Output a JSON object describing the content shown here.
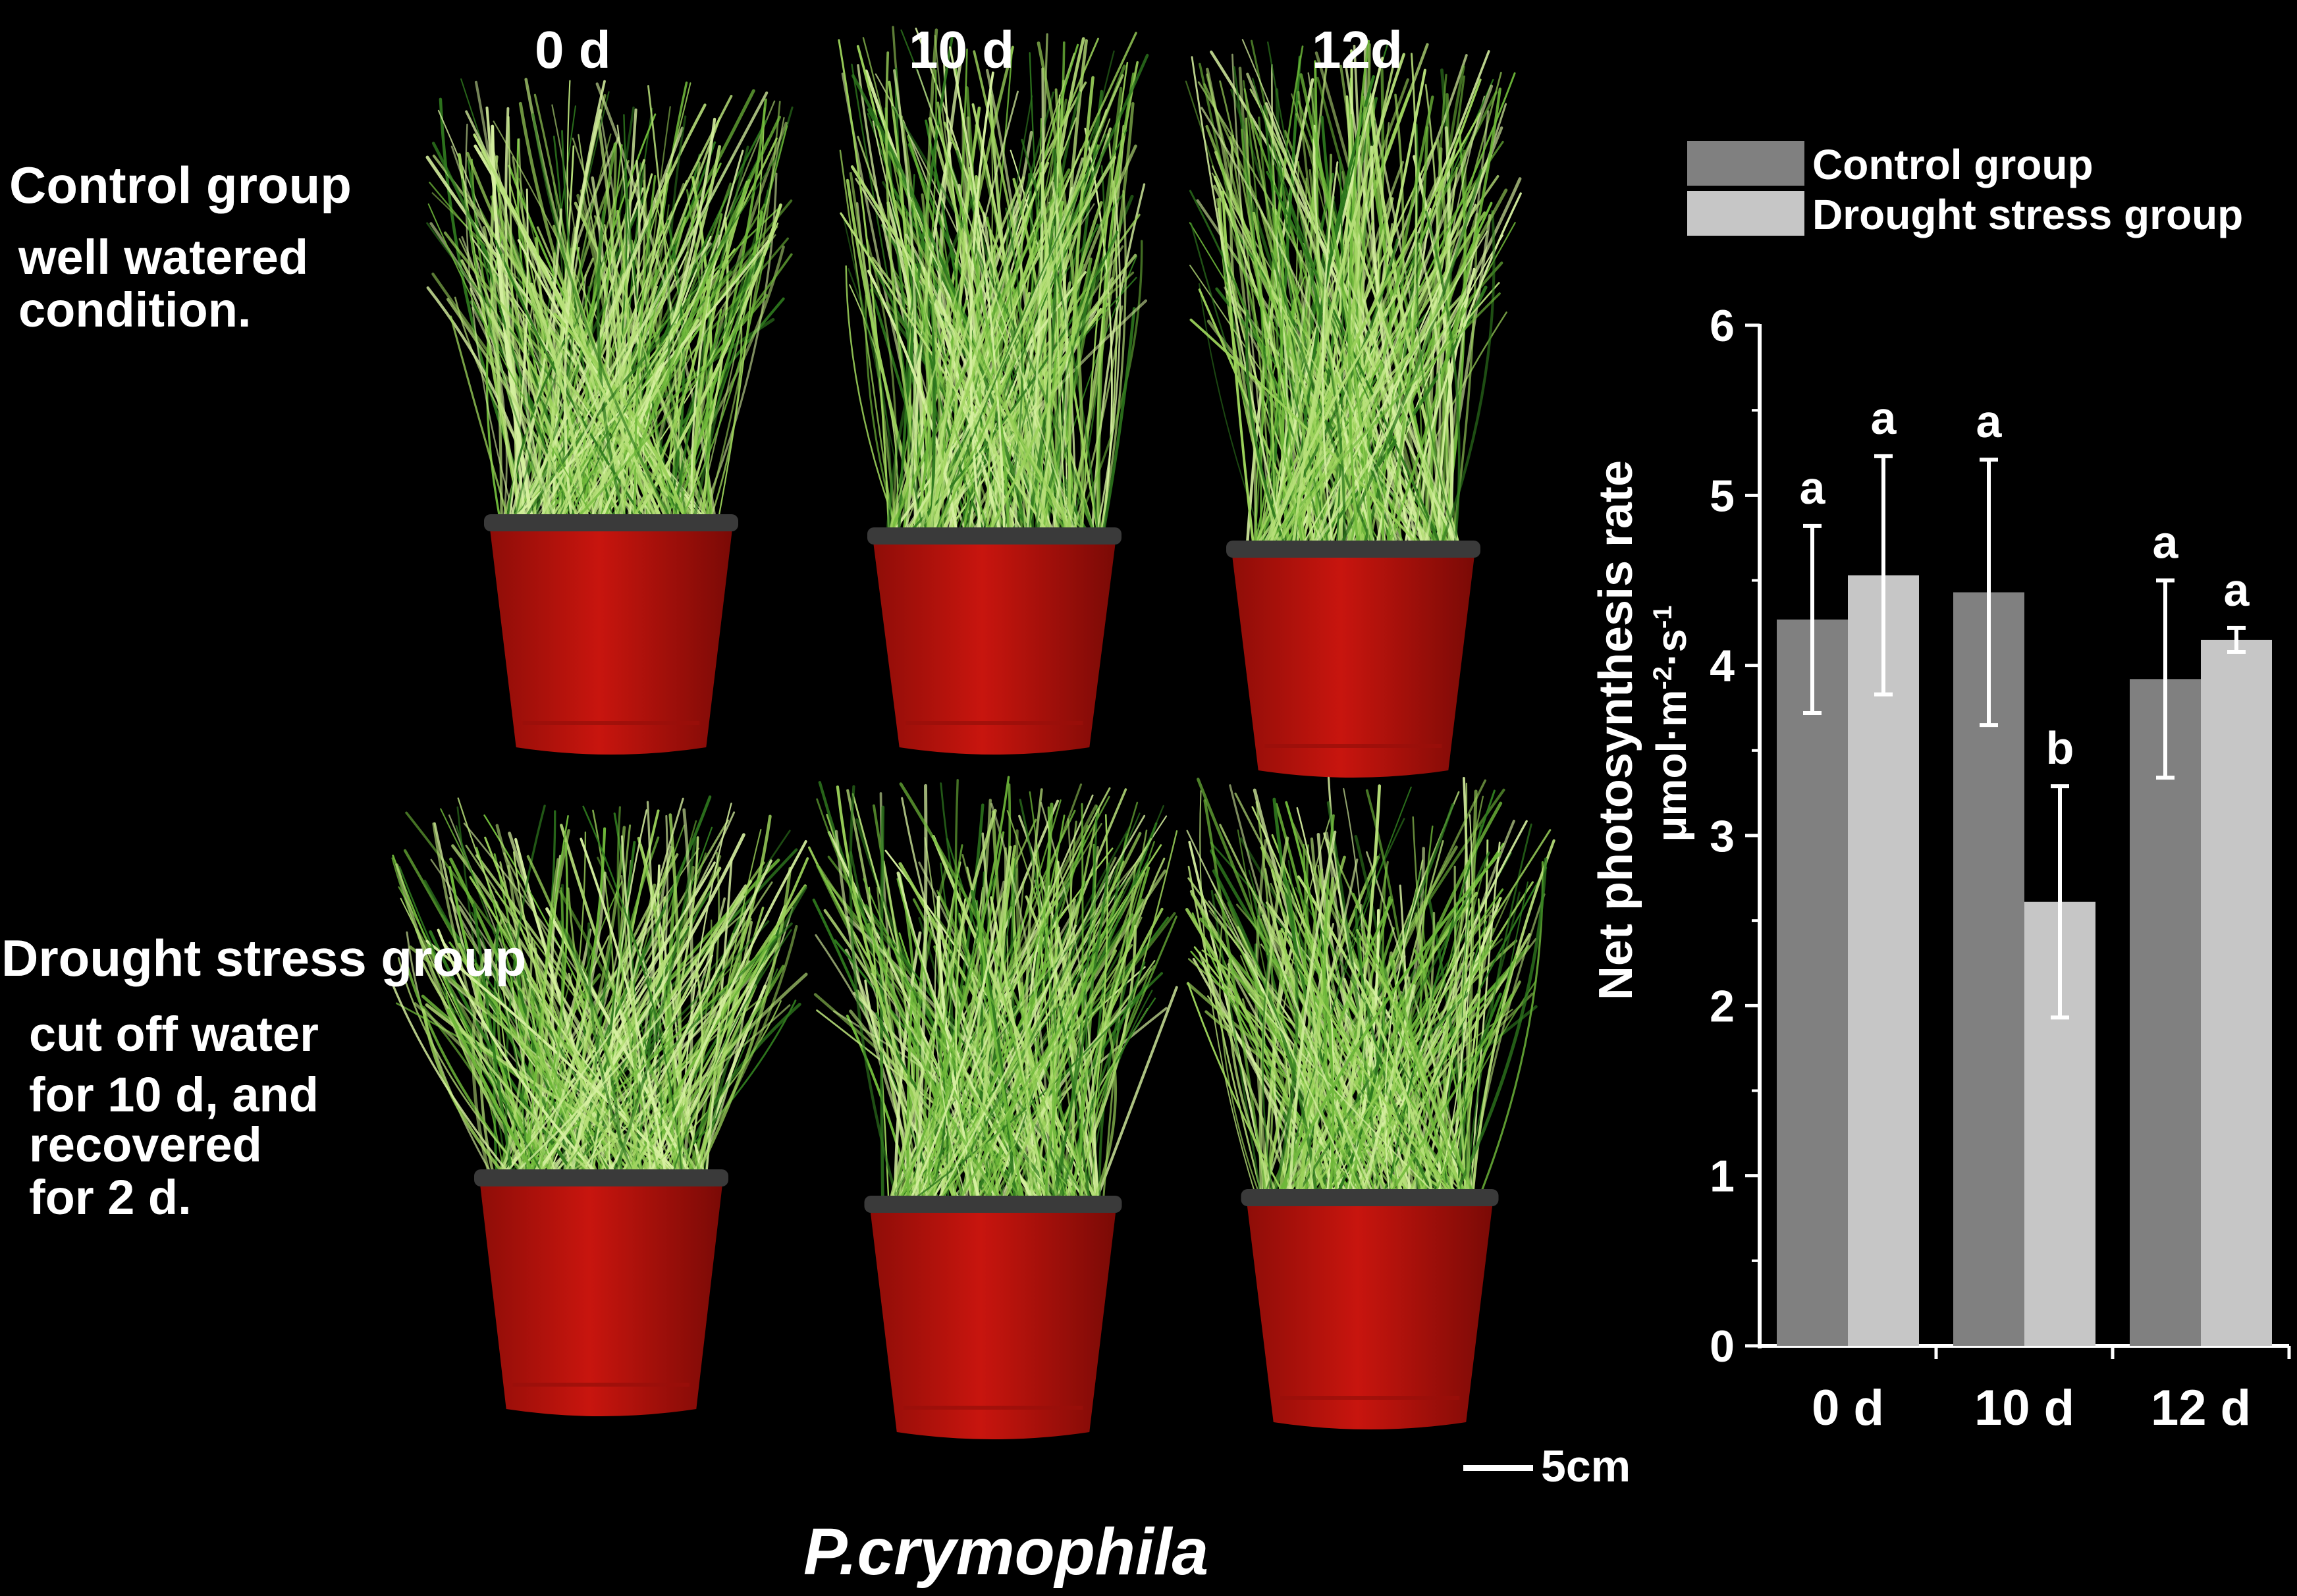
{
  "photo": {
    "column_labels": [
      "0 d",
      "10 d",
      "12d"
    ],
    "control_row": {
      "title": "Control group",
      "description": [
        "well watered",
        "condition."
      ]
    },
    "drought_row": {
      "title": "Drought stress group",
      "description": [
        "cut off water",
        "for 10 d, and",
        "recovered",
        "for 2 d."
      ]
    },
    "scale_bar_label": "5cm",
    "species_name": "P.crymophila",
    "colors": {
      "background": "#000000",
      "pot": "#c8150e",
      "pot_rim": "#3a3a3a",
      "grass_light": "#b8e07a",
      "grass_mid": "#6fb83a",
      "grass_dark": "#2f7a1e"
    }
  },
  "chart_data": {
    "type": "bar",
    "categories": [
      "0 d",
      "10 d",
      "12 d"
    ],
    "series": [
      {
        "name": "Control group",
        "values": [
          4.27,
          4.43,
          3.92
        ],
        "errors": [
          0.55,
          0.78,
          0.58
        ],
        "letters": [
          "a",
          "a",
          "a"
        ],
        "color": "#808080"
      },
      {
        "name": "Drought stress group",
        "values": [
          4.53,
          2.61,
          4.15
        ],
        "errors": [
          0.7,
          0.68,
          0.07
        ],
        "letters": [
          "a",
          "b",
          "a"
        ],
        "color": "#c6c6c6"
      }
    ],
    "ylabel_line1": "Net photosynthesis rate",
    "ylabel_line2": "μmol·m",
    "ylabel_sup1": "-2",
    "ylabel_mid": "·s",
    "ylabel_sup2": "-1",
    "ylim": [
      0,
      6
    ],
    "yticks": [
      "0",
      "1",
      "2",
      "3",
      "4",
      "5",
      "6"
    ],
    "legend_position": "top",
    "grid": false
  }
}
